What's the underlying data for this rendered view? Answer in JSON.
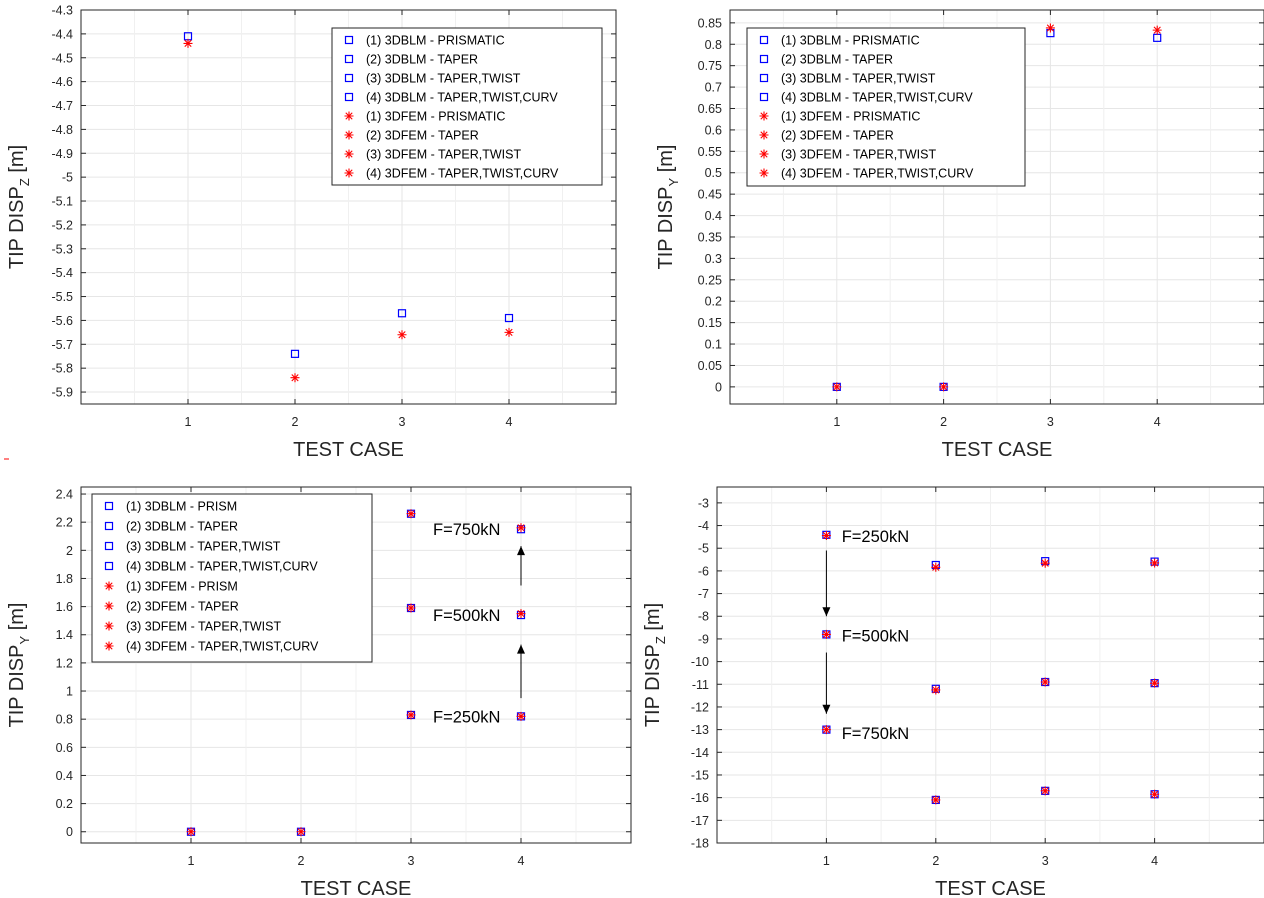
{
  "colors": {
    "dblm": "#0000ff",
    "dfem": "#ff0000",
    "grid": "#e6e6e6",
    "axis": "#262626",
    "combo": "#8b1e5c"
  },
  "chart_data": [
    {
      "id": "top-left",
      "type": "scatter",
      "xlabel": "TEST CASE",
      "ylabel_main": "TIP  DISP",
      "ylabel_sub": "Z",
      "ylabel_unit": " [m]",
      "xlim": [
        0,
        5
      ],
      "xticks": [
        1,
        2,
        3,
        4
      ],
      "ylim": [
        -5.95,
        -4.3
      ],
      "yticks": [
        -4.3,
        -4.4,
        -4.5,
        -4.6,
        -4.7,
        -4.8,
        -4.9,
        -5,
        -5.1,
        -5.2,
        -5.3,
        -5.4,
        -5.5,
        -5.6,
        -5.7,
        -5.8,
        -5.9
      ],
      "legend": [
        "(1)  3DBLM - PRISMATIC",
        "(2)  3DBLM - TAPER",
        "(3)  3DBLM - TAPER,TWIST",
        "(4)  3DBLM - TAPER,TWIST,CURV",
        "(1)  3DFEM - PRISMATIC",
        "(2)  3DFEM - TAPER",
        "(3)  3DFEM - TAPER,TWIST",
        "(4)  3DFEM - TAPER,TWIST,CURV"
      ],
      "series": [
        {
          "name": "3DBLM",
          "marker": "square",
          "x": [
            1,
            2,
            3,
            4
          ],
          "y": [
            -4.41,
            -5.74,
            -5.57,
            -5.59
          ]
        },
        {
          "name": "3DFEM",
          "marker": "star",
          "x": [
            1,
            2,
            3,
            4
          ],
          "y": [
            -4.44,
            -5.84,
            -5.66,
            -5.65
          ]
        }
      ],
      "annotations": []
    },
    {
      "id": "top-right",
      "type": "scatter",
      "xlabel": "TEST CASE",
      "ylabel_main": "TIP  DISP",
      "ylabel_sub": "Y",
      "ylabel_unit": " [m]",
      "xlim": [
        0,
        5
      ],
      "xticks": [
        1,
        2,
        3,
        4
      ],
      "ylim": [
        -0.04,
        0.88
      ],
      "yticks": [
        0,
        0.05,
        0.1,
        0.15,
        0.2,
        0.25,
        0.3,
        0.35,
        0.4,
        0.45,
        0.5,
        0.55,
        0.6,
        0.65,
        0.7,
        0.75,
        0.8,
        0.85
      ],
      "legend": [
        "(1)  3DBLM - PRISMATIC",
        "(2)  3DBLM - TAPER",
        "(3)  3DBLM - TAPER,TWIST",
        "(4)  3DBLM - TAPER,TWIST,CURV",
        "(1)  3DFEM - PRISMATIC",
        "(2)  3DFEM - TAPER",
        "(3)  3DFEM - TAPER,TWIST",
        "(4)  3DFEM - TAPER,TWIST,CURV"
      ],
      "series": [
        {
          "name": "3DBLM",
          "marker": "square",
          "x": [
            1,
            2,
            3,
            4
          ],
          "y": [
            0,
            0,
            0.826,
            0.815
          ]
        },
        {
          "name": "3DFEM",
          "marker": "star",
          "x": [
            1,
            2,
            3,
            4
          ],
          "y": [
            0,
            0,
            0.838,
            0.833
          ]
        }
      ],
      "annotations": []
    },
    {
      "id": "bottom-left",
      "type": "scatter",
      "xlabel": "TEST CASE",
      "ylabel_main": "TIP  DISP",
      "ylabel_sub": "Y",
      "ylabel_unit": " [m]",
      "xlim": [
        0,
        5
      ],
      "xticks": [
        1,
        2,
        3,
        4
      ],
      "ylim": [
        -0.08,
        2.45
      ],
      "yticks": [
        0,
        0.2,
        0.4,
        0.6,
        0.8,
        1,
        1.2,
        1.4,
        1.6,
        1.8,
        2,
        2.2,
        2.4
      ],
      "legend": [
        "(1)  3DBLM - PRISM",
        "(2)  3DBLM - TAPER",
        "(3)  3DBLM - TAPER,TWIST",
        "(4)  3DBLM - TAPER,TWIST,CURV",
        "(1)  3DFEM - PRISM",
        "(2)  3DFEM - TAPER",
        "(3)  3DFEM - TAPER,TWIST",
        "(4)  3DFEM - TAPER,TWIST,CURV"
      ],
      "series": [
        {
          "name": "3DBLM",
          "marker": "square",
          "x": [
            1,
            2,
            3,
            3,
            3,
            4,
            4,
            4
          ],
          "y": [
            0,
            0,
            0.83,
            1.59,
            2.26,
            0.82,
            1.54,
            2.15
          ]
        },
        {
          "name": "3DFEM",
          "marker": "star",
          "x": [
            1,
            2,
            3,
            3,
            3,
            4,
            4,
            4
          ],
          "y": [
            0,
            0,
            0.83,
            1.59,
            2.26,
            0.82,
            1.55,
            2.16
          ]
        }
      ],
      "annotations": [
        {
          "text": "F=750kN",
          "x": 3.2,
          "y": 2.15
        },
        {
          "text": "F=500kN",
          "x": 3.2,
          "y": 1.54
        },
        {
          "text": "F=250kN",
          "x": 3.2,
          "y": 0.82
        }
      ],
      "arrows": [
        {
          "x": 4,
          "y1": 1.75,
          "y2": 2.03
        },
        {
          "x": 4,
          "y1": 0.95,
          "y2": 1.33
        }
      ]
    },
    {
      "id": "bottom-right",
      "type": "scatter",
      "xlabel": "TEST CASE",
      "ylabel_main": "TIP  DISP",
      "ylabel_sub": "Z",
      "ylabel_unit": " [m]",
      "xlim": [
        0,
        5
      ],
      "xticks": [
        1,
        2,
        3,
        4
      ],
      "ylim": [
        -18,
        -2.3
      ],
      "yticks": [
        -3,
        -4,
        -5,
        -6,
        -7,
        -8,
        -9,
        -10,
        -11,
        -12,
        -13,
        -14,
        -15,
        -16,
        -17,
        -18
      ],
      "legend": [],
      "series": [
        {
          "name": "3DBLM",
          "marker": "square",
          "x": [
            1,
            1,
            1,
            2,
            2,
            2,
            3,
            3,
            3,
            4,
            4,
            4
          ],
          "y": [
            -4.41,
            -8.8,
            -13,
            -5.74,
            -11.2,
            -16.1,
            -5.57,
            -10.9,
            -15.7,
            -5.59,
            -10.95,
            -15.85
          ]
        },
        {
          "name": "3DFEM",
          "marker": "star",
          "x": [
            1,
            1,
            1,
            2,
            2,
            2,
            3,
            3,
            3,
            4,
            4,
            4
          ],
          "y": [
            -4.44,
            -8.8,
            -13,
            -5.84,
            -11.25,
            -16.1,
            -5.66,
            -10.9,
            -15.7,
            -5.65,
            -10.95,
            -15.85
          ]
        }
      ],
      "annotations": [
        {
          "text": "F=250kN",
          "x": 1.14,
          "y": -4.45
        },
        {
          "text": "F=500kN",
          "x": 1.14,
          "y": -8.85
        },
        {
          "text": "F=750kN",
          "x": 1.14,
          "y": -13.15
        }
      ],
      "arrows": [
        {
          "x": 1,
          "y1": -5.1,
          "y2": -8
        },
        {
          "x": 1,
          "y1": -9.6,
          "y2": -12.3
        }
      ]
    }
  ]
}
